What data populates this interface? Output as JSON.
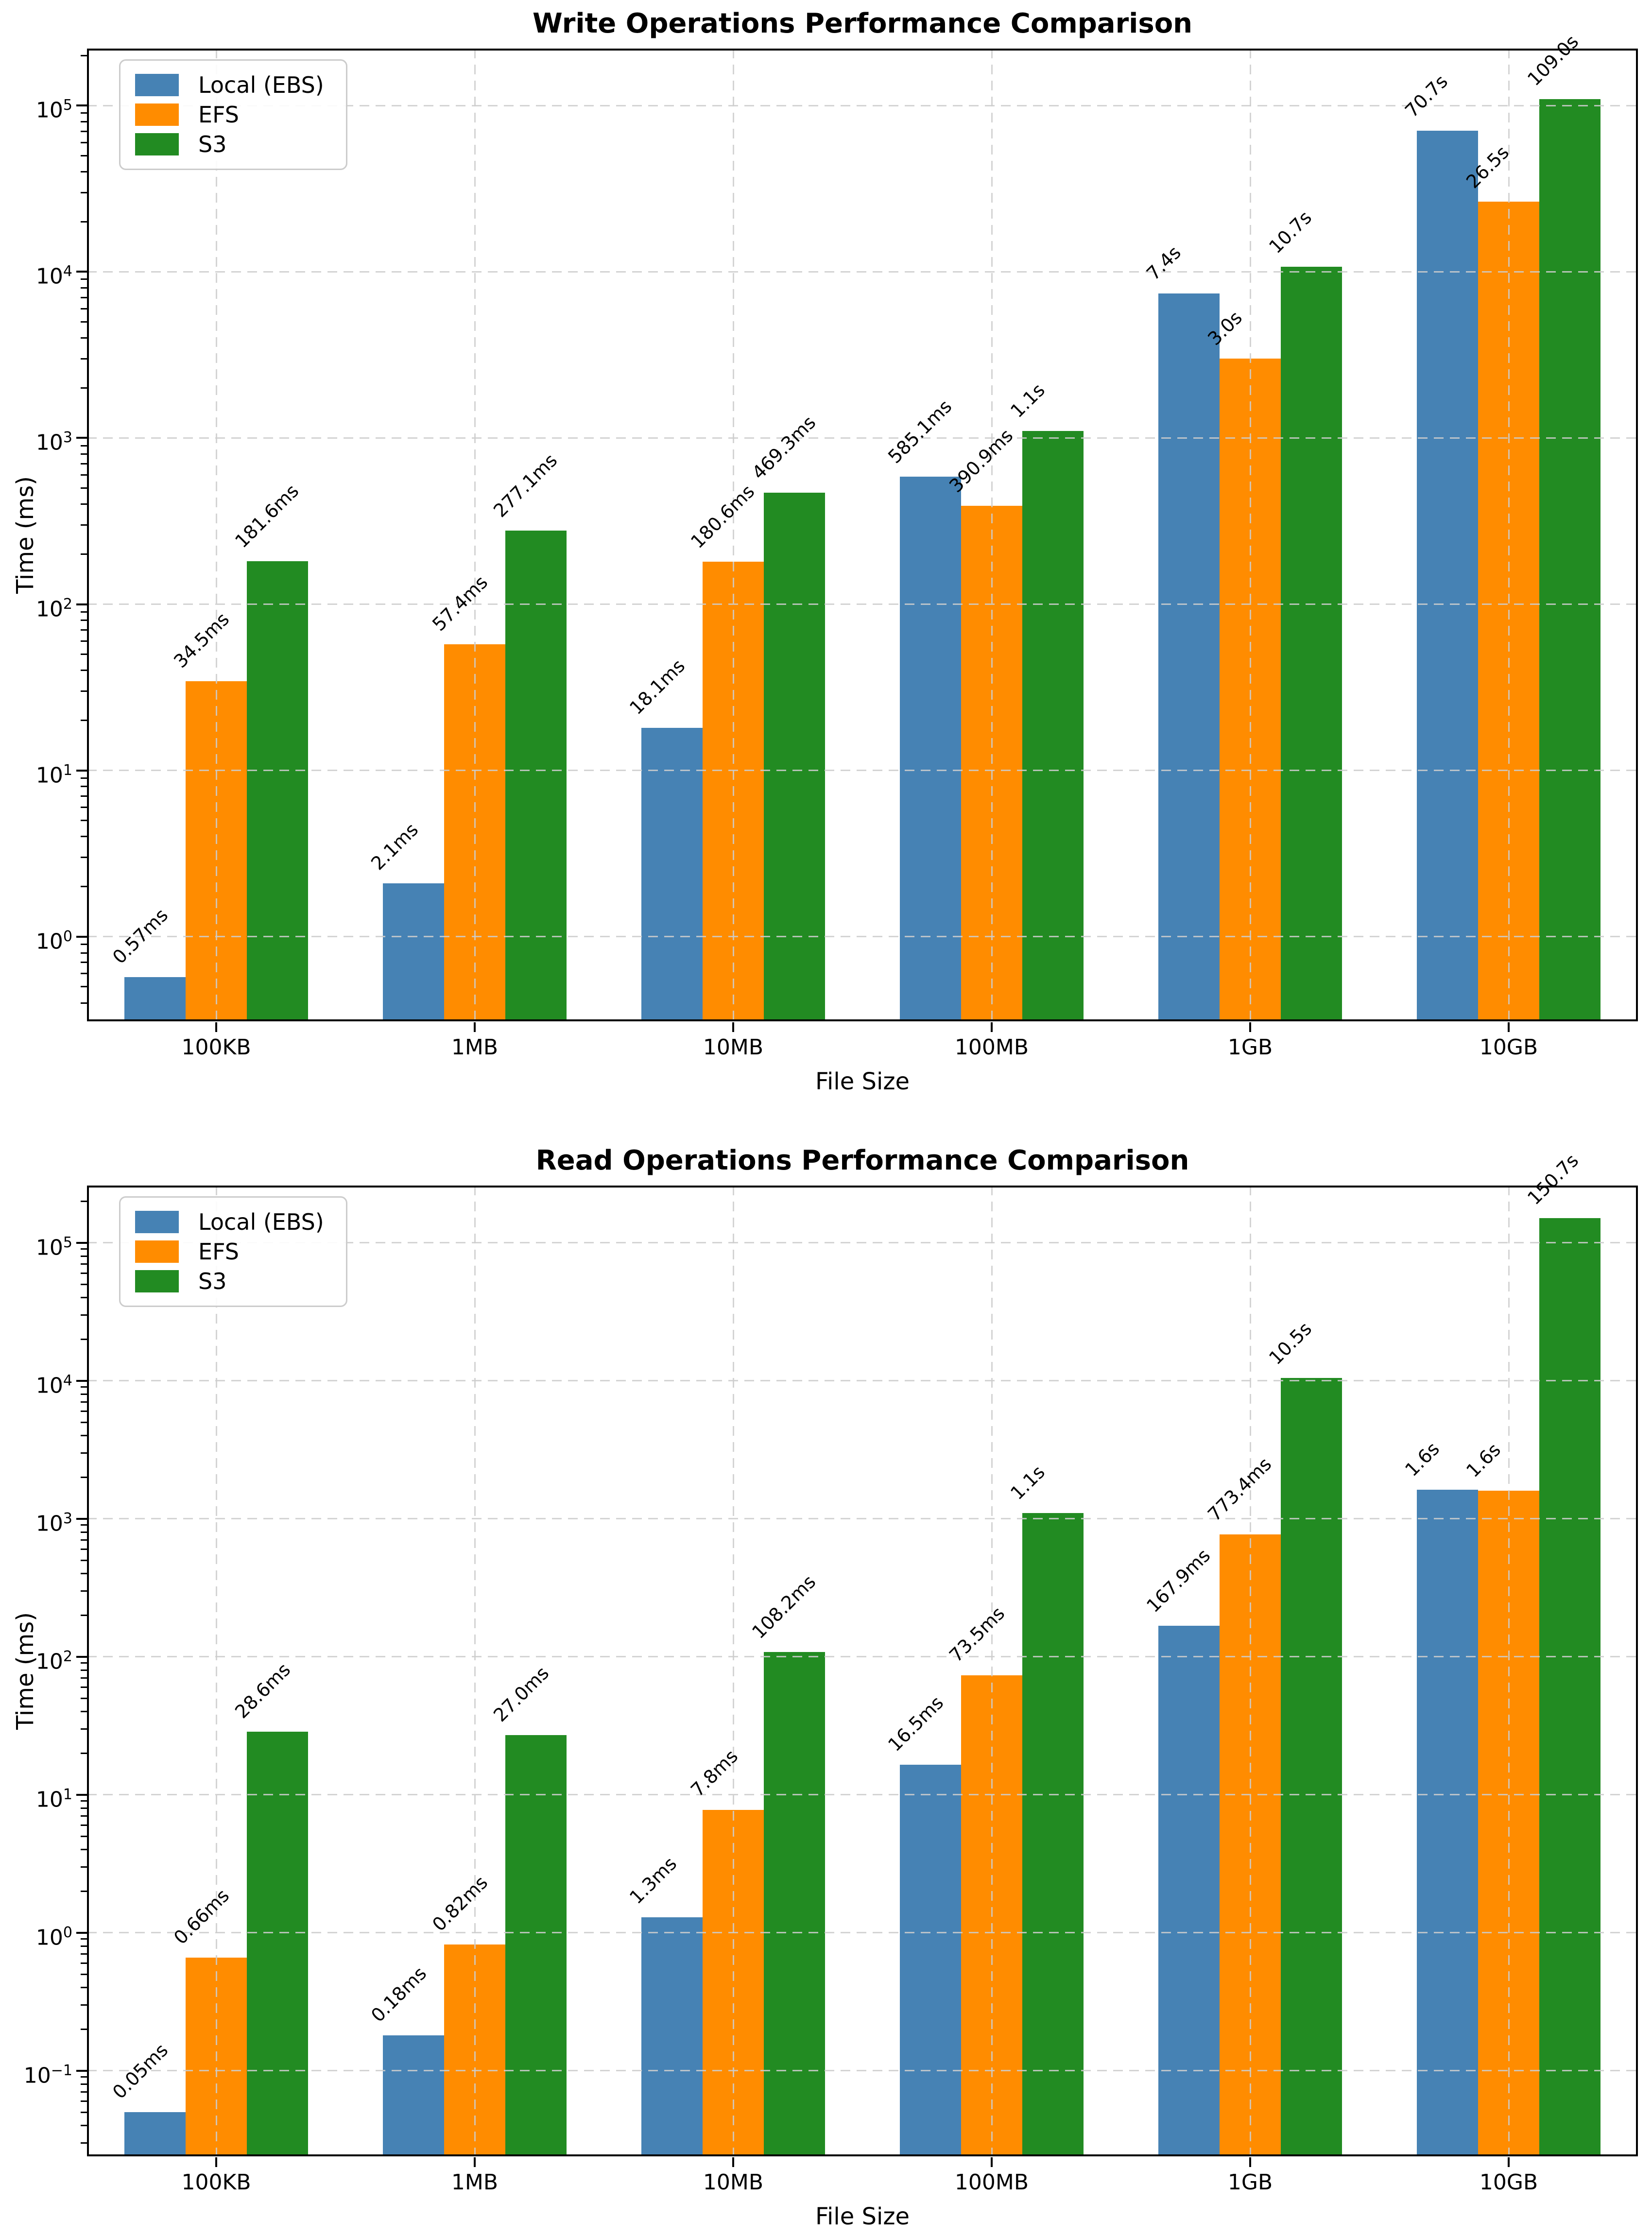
{
  "figure": {
    "background": "#ffffff",
    "series_colors": {
      "local": "#4682B4",
      "efs": "#FF8C00",
      "s3": "#228B22"
    }
  },
  "chart_data": [
    {
      "type": "bar",
      "title": "Write Operations Performance Comparison",
      "xlabel": "File Size",
      "ylabel": "Time (ms)",
      "yscale": "log",
      "grid": true,
      "legend_position": "upper left",
      "categories": [
        "100KB",
        "1MB",
        "10MB",
        "100MB",
        "1GB",
        "10GB"
      ],
      "ylim_ms": [
        0.31,
        220000
      ],
      "ytick_exponents": [
        0,
        1,
        2,
        3,
        4,
        5
      ],
      "series": [
        {
          "name": "Local (EBS)",
          "color": "#4682B4",
          "values_ms": [
            0.57,
            2.1,
            18.1,
            585.1,
            7400,
            70700
          ],
          "labels": [
            "0.57ms",
            "2.1ms",
            "18.1ms",
            "585.1ms",
            "7.4s",
            "70.7s"
          ]
        },
        {
          "name": "EFS",
          "color": "#FF8C00",
          "values_ms": [
            34.5,
            57.4,
            180.6,
            390.9,
            3000,
            26500
          ],
          "labels": [
            "34.5ms",
            "57.4ms",
            "180.6ms",
            "390.9ms",
            "3.0s",
            "26.5s"
          ]
        },
        {
          "name": "S3",
          "color": "#228B22",
          "values_ms": [
            181.6,
            277.1,
            469.3,
            1100,
            10700,
            109000
          ],
          "labels": [
            "181.6ms",
            "277.1ms",
            "469.3ms",
            "1.1s",
            "10.7s",
            "109.0s"
          ]
        }
      ]
    },
    {
      "type": "bar",
      "title": "Read Operations Performance Comparison",
      "xlabel": "File Size",
      "ylabel": "Time (ms)",
      "yscale": "log",
      "grid": true,
      "legend_position": "upper left",
      "categories": [
        "100KB",
        "1MB",
        "10MB",
        "100MB",
        "1GB",
        "10GB"
      ],
      "ylim_ms": [
        0.024,
        260000
      ],
      "ytick_exponents": [
        -1,
        0,
        1,
        2,
        3,
        4,
        5
      ],
      "series": [
        {
          "name": "Local (EBS)",
          "color": "#4682B4",
          "values_ms": [
            0.05,
            0.18,
            1.3,
            16.5,
            167.9,
            1620
          ],
          "labels": [
            "0.05ms",
            "0.18ms",
            "1.3ms",
            "16.5ms",
            "167.9ms",
            "1.6s"
          ]
        },
        {
          "name": "EFS",
          "color": "#FF8C00",
          "values_ms": [
            0.66,
            0.82,
            7.8,
            73.5,
            773.4,
            1600
          ],
          "labels": [
            "0.66ms",
            "0.82ms",
            "7.8ms",
            "73.5ms",
            "773.4ms",
            "1.6s"
          ]
        },
        {
          "name": "S3",
          "color": "#228B22",
          "values_ms": [
            28.6,
            27.0,
            108.2,
            1100,
            10500,
            150700
          ],
          "labels": [
            "28.6ms",
            "27.0ms",
            "108.2ms",
            "1.1s",
            "10.5s",
            "150.7s"
          ]
        }
      ]
    }
  ]
}
